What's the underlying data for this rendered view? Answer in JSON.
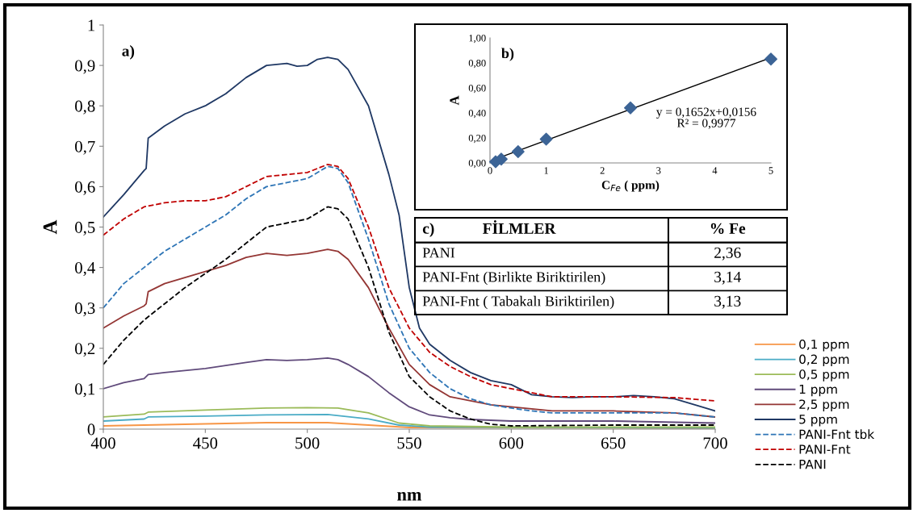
{
  "chart_data": [
    {
      "type": "line",
      "xlabel": "nm",
      "ylabel": "A",
      "annotations": [
        "a)"
      ],
      "xlim": [
        400,
        700
      ],
      "xticks": [
        400,
        450,
        500,
        550,
        600,
        650,
        700
      ],
      "ylim": [
        0,
        1
      ],
      "yticks": [
        0,
        {
          "value": 0.1,
          "label": "0,1"
        },
        {
          "value": 0.2,
          "label": "0,2"
        },
        {
          "value": 0.3,
          "label": "0,3"
        },
        {
          "value": 0.4,
          "label": "0,4"
        },
        {
          "value": 0.5,
          "label": "0,5"
        },
        {
          "value": 0.6,
          "label": "0,6"
        },
        {
          "value": 0.7,
          "label": "0,7"
        },
        {
          "value": 0.8,
          "label": "0,8"
        },
        {
          "value": 0.9,
          "label": "0,9"
        },
        1
      ],
      "grid": false,
      "legend": "right",
      "marker": "none",
      "series": [
        {
          "name": "0,1 ppm",
          "color": "#f79646",
          "line_style": "solid",
          "x": [
            400,
            420,
            450,
            480,
            510,
            530,
            550,
            700
          ],
          "values": [
            0.008,
            0.01,
            0.013,
            0.016,
            0.016,
            0.01,
            0.004,
            0.002
          ]
        },
        {
          "name": "0,2 ppm",
          "color": "#4bacc6",
          "line_style": "solid",
          "x": [
            400,
            420,
            422,
            450,
            480,
            510,
            530,
            545,
            560,
            700
          ],
          "values": [
            0.02,
            0.025,
            0.03,
            0.032,
            0.035,
            0.036,
            0.025,
            0.01,
            0.005,
            0.003
          ]
        },
        {
          "name": "0,5 ppm",
          "color": "#9bbb59",
          "line_style": "solid",
          "x": [
            400,
            420,
            422,
            450,
            480,
            500,
            515,
            530,
            545,
            560,
            600,
            700
          ],
          "values": [
            0.03,
            0.037,
            0.042,
            0.047,
            0.052,
            0.053,
            0.052,
            0.04,
            0.015,
            0.008,
            0.005,
            0.005
          ]
        },
        {
          "name": "1 ppm",
          "color": "#604a7b",
          "line_style": "solid",
          "x": [
            400,
            410,
            420,
            422,
            430,
            450,
            470,
            480,
            490,
            500,
            510,
            515,
            520,
            530,
            540,
            550,
            560,
            570,
            580,
            600,
            650,
            700
          ],
          "values": [
            0.1,
            0.115,
            0.125,
            0.135,
            0.14,
            0.15,
            0.165,
            0.172,
            0.17,
            0.172,
            0.176,
            0.172,
            0.16,
            0.13,
            0.09,
            0.055,
            0.035,
            0.028,
            0.024,
            0.02,
            0.02,
            0.015
          ]
        },
        {
          "name": "2,5 ppm",
          "color": "#943634",
          "line_style": "solid",
          "x": [
            400,
            410,
            420,
            421,
            422,
            430,
            440,
            450,
            460,
            470,
            480,
            490,
            500,
            510,
            515,
            520,
            530,
            540,
            550,
            560,
            570,
            580,
            590,
            600,
            620,
            650,
            680,
            700
          ],
          "values": [
            0.25,
            0.28,
            0.305,
            0.31,
            0.34,
            0.36,
            0.375,
            0.39,
            0.405,
            0.425,
            0.435,
            0.43,
            0.435,
            0.445,
            0.44,
            0.42,
            0.35,
            0.25,
            0.16,
            0.11,
            0.08,
            0.07,
            0.06,
            0.055,
            0.045,
            0.045,
            0.04,
            0.03
          ]
        },
        {
          "name": "5 ppm",
          "color": "#1f3864",
          "line_style": "solid",
          "x": [
            400,
            410,
            420,
            421,
            422,
            430,
            440,
            450,
            460,
            470,
            480,
            490,
            495,
            500,
            505,
            510,
            515,
            520,
            530,
            540,
            545,
            550,
            555,
            560,
            570,
            580,
            590,
            600,
            610,
            620,
            630,
            640,
            650,
            660,
            670,
            680,
            690,
            700
          ],
          "values": [
            0.525,
            0.58,
            0.64,
            0.645,
            0.72,
            0.75,
            0.78,
            0.8,
            0.83,
            0.87,
            0.9,
            0.905,
            0.898,
            0.9,
            0.915,
            0.92,
            0.915,
            0.89,
            0.8,
            0.63,
            0.53,
            0.35,
            0.25,
            0.21,
            0.17,
            0.14,
            0.12,
            0.11,
            0.085,
            0.08,
            0.078,
            0.08,
            0.08,
            0.083,
            0.08,
            0.075,
            0.06,
            0.045
          ]
        },
        {
          "name": "PANI-Fnt tbk",
          "color": "#2e75b6",
          "line_style": "dashed",
          "x": [
            400,
            410,
            420,
            430,
            440,
            450,
            460,
            470,
            480,
            490,
            500,
            510,
            515,
            520,
            530,
            540,
            550,
            560,
            570,
            580,
            590,
            600,
            610,
            620,
            650,
            680,
            700
          ],
          "values": [
            0.3,
            0.36,
            0.4,
            0.44,
            0.47,
            0.5,
            0.53,
            0.57,
            0.6,
            0.61,
            0.62,
            0.65,
            0.645,
            0.61,
            0.47,
            0.31,
            0.2,
            0.14,
            0.1,
            0.075,
            0.06,
            0.052,
            0.045,
            0.04,
            0.04,
            0.04,
            0.03
          ]
        },
        {
          "name": "PANI-Fnt",
          "color": "#c00000",
          "line_style": "dashed",
          "x": [
            400,
            410,
            420,
            430,
            440,
            450,
            460,
            470,
            480,
            490,
            500,
            510,
            515,
            520,
            530,
            540,
            550,
            560,
            570,
            580,
            590,
            600,
            610,
            620,
            650,
            680,
            700
          ],
          "values": [
            0.48,
            0.52,
            0.55,
            0.56,
            0.565,
            0.565,
            0.575,
            0.6,
            0.625,
            0.63,
            0.635,
            0.655,
            0.65,
            0.62,
            0.5,
            0.35,
            0.25,
            0.19,
            0.155,
            0.13,
            0.11,
            0.1,
            0.09,
            0.08,
            0.08,
            0.078,
            0.07
          ]
        },
        {
          "name": "PANI",
          "color": "#000000",
          "line_style": "dashed",
          "x": [
            400,
            410,
            420,
            430,
            440,
            450,
            460,
            470,
            480,
            490,
            500,
            510,
            515,
            520,
            530,
            540,
            550,
            560,
            570,
            580,
            590,
            600,
            650,
            700
          ],
          "values": [
            0.16,
            0.22,
            0.27,
            0.31,
            0.35,
            0.385,
            0.42,
            0.46,
            0.5,
            0.51,
            0.52,
            0.55,
            0.545,
            0.52,
            0.4,
            0.24,
            0.13,
            0.08,
            0.045,
            0.025,
            0.012,
            0.008,
            0.01,
            0.01
          ]
        }
      ]
    },
    {
      "type": "scatter",
      "xlabel": "C$_{Fe}$ ( ppm)",
      "ylabel": "A",
      "annotations": [
        "b)",
        "y = 0,1652x+0,0156",
        "R² = 0,9977"
      ],
      "xlim": [
        0,
        5
      ],
      "xticks": [
        0,
        1,
        2,
        3,
        4,
        5
      ],
      "ylim": [
        0,
        1
      ],
      "yticks": [
        {
          "value": 0,
          "label": "0,00"
        },
        {
          "value": 0.2,
          "label": "0,20"
        },
        {
          "value": 0.4,
          "label": "0,40"
        },
        {
          "value": 0.6,
          "label": "0,60"
        },
        {
          "value": 0.8,
          "label": "0,80"
        },
        {
          "value": 1,
          "label": "1,00"
        }
      ],
      "grid": false,
      "legend": false,
      "series": [
        {
          "color": "#3c6496",
          "marker": "diamond",
          "x": [
            0.1,
            0.2,
            0.5,
            1,
            2.5,
            5
          ],
          "values": [
            0.01,
            0.03,
            0.09,
            0.19,
            0.44,
            0.83
          ]
        },
        {
          "type": "line",
          "color": "#000000",
          "line_style": "solid",
          "marker": "none",
          "x": [
            0.1,
            5
          ],
          "values": [
            0.032,
            0.842
          ]
        }
      ]
    },
    {
      "type": "other",
      "annotations": [
        "c)",
        "FİLMLER",
        "% Fe",
        "PANI",
        "2,36",
        "PANI-Fnt (Birlikte Biriktirilen)",
        "3,14",
        "PANI-Fnt ( Tabakalı Biriktirilen)",
        "3,13"
      ]
    }
  ]
}
